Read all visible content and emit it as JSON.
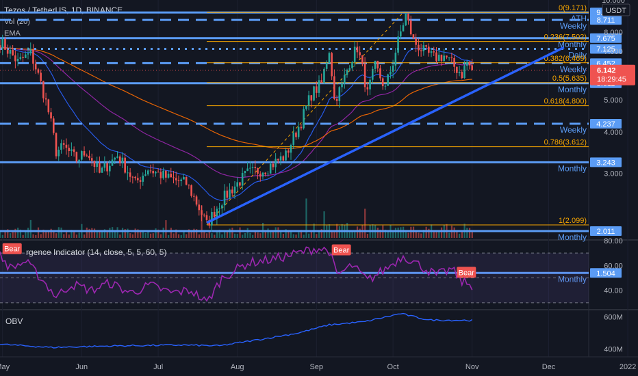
{
  "header": {
    "symbol_line": "Tezos / TetherUS, 1D, BINANCE",
    "vol_label": "Vol (20)",
    "ema_label": "EMA",
    "currency": "USDT"
  },
  "chart_data": [
    {
      "type": "candlestick",
      "title": "Tezos / TetherUS, 1D, BINANCE",
      "y_scale": "log",
      "ylim": [
        1.9,
        10.0
      ],
      "y_ticks": [
        3.0,
        4.0,
        5.0,
        6.0,
        7.0,
        8.0,
        10.0
      ],
      "y_tick_labels": [
        "3.000",
        "4.000",
        "5.000",
        "6.000",
        "7.000",
        "8.000",
        "10.000"
      ],
      "x_ticks": [
        "May",
        "Jun",
        "Jul",
        "Aug",
        "Sep",
        "Oct",
        "Nov",
        "Dec",
        "2022"
      ],
      "x_tick_dates": [
        "2021-05-01",
        "2021-06-01",
        "2021-07-01",
        "2021-08-01",
        "2021-09-01",
        "2021-10-01",
        "2021-11-01",
        "2021-12-01",
        "2022-01-01"
      ],
      "x_range": [
        "2021-04-30",
        "2022-01-05"
      ],
      "last_price": 6.142,
      "countdown": "18:29:45",
      "price_path": [
        [
          "2021-04-30",
          7.5
        ],
        [
          "2021-05-07",
          6.5
        ],
        [
          "2021-05-12",
          6.9
        ],
        [
          "2021-05-16",
          5.6
        ],
        [
          "2021-05-19",
          4.6
        ],
        [
          "2021-05-22",
          3.5
        ],
        [
          "2021-05-25",
          3.6
        ],
        [
          "2021-05-30",
          3.3
        ],
        [
          "2021-06-03",
          3.5
        ],
        [
          "2021-06-08",
          3.0
        ],
        [
          "2021-06-15",
          3.4
        ],
        [
          "2021-06-22",
          2.8
        ],
        [
          "2021-06-27",
          3.1
        ],
        [
          "2021-07-05",
          2.9
        ],
        [
          "2021-07-12",
          2.8
        ],
        [
          "2021-07-20",
          2.1
        ],
        [
          "2021-07-26",
          2.5
        ],
        [
          "2021-08-05",
          3.0
        ],
        [
          "2021-08-12",
          3.1
        ],
        [
          "2021-08-20",
          3.4
        ],
        [
          "2021-08-26",
          4.3
        ],
        [
          "2021-08-30",
          5.2
        ],
        [
          "2021-09-03",
          5.6
        ],
        [
          "2021-09-06",
          7.1
        ],
        [
          "2021-09-08",
          5.0
        ],
        [
          "2021-09-11",
          5.5
        ],
        [
          "2021-09-14",
          6.5
        ],
        [
          "2021-09-17",
          7.2
        ],
        [
          "2021-09-21",
          5.2
        ],
        [
          "2021-09-24",
          6.3
        ],
        [
          "2021-09-28",
          5.4
        ],
        [
          "2021-10-01",
          6.5
        ],
        [
          "2021-10-04",
          8.0
        ],
        [
          "2021-10-06",
          9.0
        ],
        [
          "2021-10-09",
          7.5
        ],
        [
          "2021-10-13",
          7.0
        ],
        [
          "2021-10-17",
          6.7
        ],
        [
          "2021-10-21",
          6.8
        ],
        [
          "2021-10-25",
          6.3
        ],
        [
          "2021-10-28",
          6.0
        ],
        [
          "2021-10-30",
          6.5
        ],
        [
          "2021-11-01",
          6.142
        ]
      ],
      "trendline": {
        "from": [
          "2021-07-20",
          2.13
        ],
        "to": [
          "2021-12-07",
          7.2
        ],
        "color": "#2962ff"
      },
      "fib_diagonal": {
        "from": [
          "2021-07-20",
          2.099
        ],
        "to": [
          "2021-10-05",
          9.171
        ],
        "color": "#f7a600"
      },
      "fib_levels": [
        {
          "label": "0(9.171)",
          "value": 9.171
        },
        {
          "label": "0.236(7.502)",
          "value": 7.502
        },
        {
          "label": "0.382(6.469)",
          "value": 6.469
        },
        {
          "label": "0.5(5.635)",
          "value": 5.635
        },
        {
          "label": "0.618(4.800)",
          "value": 4.8
        },
        {
          "label": "0.786(3.612)",
          "value": 3.612
        },
        {
          "label": "1(2.099)",
          "value": 2.099
        }
      ],
      "horizontal_levels": [
        {
          "name": "ATH",
          "value": 9.171,
          "badge": "9.171",
          "style": "solid"
        },
        {
          "name": "Weekly",
          "value": 8.711,
          "badge": "8.711",
          "style": "dashed"
        },
        {
          "name": "Monthly",
          "value": 7.675,
          "badge": "7.675",
          "style": "solid"
        },
        {
          "name": "Daily",
          "value": 7.125,
          "badge": "7.125",
          "style": "dotted"
        },
        {
          "name": "Weekly",
          "value": 6.452,
          "badge": "6.452",
          "style": "dashed"
        },
        {
          "name": "Monthly",
          "value": 5.611,
          "badge": "5.611",
          "style": "solid"
        },
        {
          "name": "Weekly",
          "value": 4.237,
          "badge": "4.237",
          "style": "dashed"
        },
        {
          "name": "Monthly",
          "value": 3.243,
          "badge": "3.243",
          "style": "solid"
        },
        {
          "name": "Monthly",
          "value": 2.011,
          "badge": "2.011",
          "style": "solid"
        },
        {
          "name": "Monthly",
          "value": 1.504,
          "badge": "1.504",
          "style": "solid"
        }
      ],
      "colors": {
        "up": "#26a69a",
        "down": "#ef5350",
        "level": "#5b9cf5",
        "fib": "#f7a600",
        "ema_fast": "#2962ff",
        "ema_mid": "#9c27b0",
        "ema_slow": "#ff6d00"
      }
    },
    {
      "type": "line",
      "title": "rgence Indicator (14, close, 5, 5, 60, 5)",
      "ylim": [
        25,
        80
      ],
      "y_ticks": [
        40.0,
        60.0,
        80.0
      ],
      "y_tick_labels": [
        "40.00",
        "60.00",
        "80.00"
      ],
      "bands": [
        30,
        50,
        70
      ],
      "series_path": [
        [
          "2021-04-30",
          68
        ],
        [
          "2021-05-04",
          58
        ],
        [
          "2021-05-10",
          63
        ],
        [
          "2021-05-16",
          50
        ],
        [
          "2021-05-22",
          35
        ],
        [
          "2021-05-28",
          45
        ],
        [
          "2021-06-05",
          40
        ],
        [
          "2021-06-12",
          46
        ],
        [
          "2021-06-20",
          38
        ],
        [
          "2021-06-28",
          44
        ],
        [
          "2021-07-06",
          38
        ],
        [
          "2021-07-14",
          40
        ],
        [
          "2021-07-20",
          30
        ],
        [
          "2021-07-26",
          50
        ],
        [
          "2021-08-05",
          62
        ],
        [
          "2021-08-15",
          65
        ],
        [
          "2021-08-25",
          70
        ],
        [
          "2021-09-01",
          74
        ],
        [
          "2021-09-06",
          72
        ],
        [
          "2021-09-09",
          52
        ],
        [
          "2021-09-15",
          60
        ],
        [
          "2021-09-21",
          48
        ],
        [
          "2021-09-28",
          57
        ],
        [
          "2021-10-05",
          68
        ],
        [
          "2021-10-10",
          62
        ],
        [
          "2021-10-18",
          52
        ],
        [
          "2021-10-24",
          57
        ],
        [
          "2021-10-28",
          47
        ],
        [
          "2021-11-01",
          44
        ]
      ],
      "divergence_labels": [
        {
          "text": "Bear",
          "date": "2021-05-01",
          "value": 73
        },
        {
          "text": "Bear",
          "date": "2021-09-07",
          "value": 72
        },
        {
          "text": "Bear",
          "date": "2021-10-26",
          "value": 54
        }
      ],
      "colors": {
        "line": "#9c27b0",
        "label_bg": "#ef5350"
      }
    },
    {
      "type": "line",
      "title": "OBV",
      "y_ticks": [
        400,
        600
      ],
      "y_tick_labels": [
        "400M",
        "600M"
      ],
      "ylim": [
        360,
        640
      ],
      "series_path": [
        [
          "2021-04-30",
          430
        ],
        [
          "2021-05-20",
          410
        ],
        [
          "2021-06-15",
          420
        ],
        [
          "2021-07-10",
          425
        ],
        [
          "2021-07-25",
          420
        ],
        [
          "2021-08-10",
          460
        ],
        [
          "2021-08-25",
          500
        ],
        [
          "2021-09-06",
          550
        ],
        [
          "2021-09-20",
          570
        ],
        [
          "2021-10-04",
          620
        ],
        [
          "2021-10-15",
          580
        ],
        [
          "2021-11-01",
          578
        ]
      ],
      "colors": {
        "line": "#2962ff"
      }
    }
  ]
}
